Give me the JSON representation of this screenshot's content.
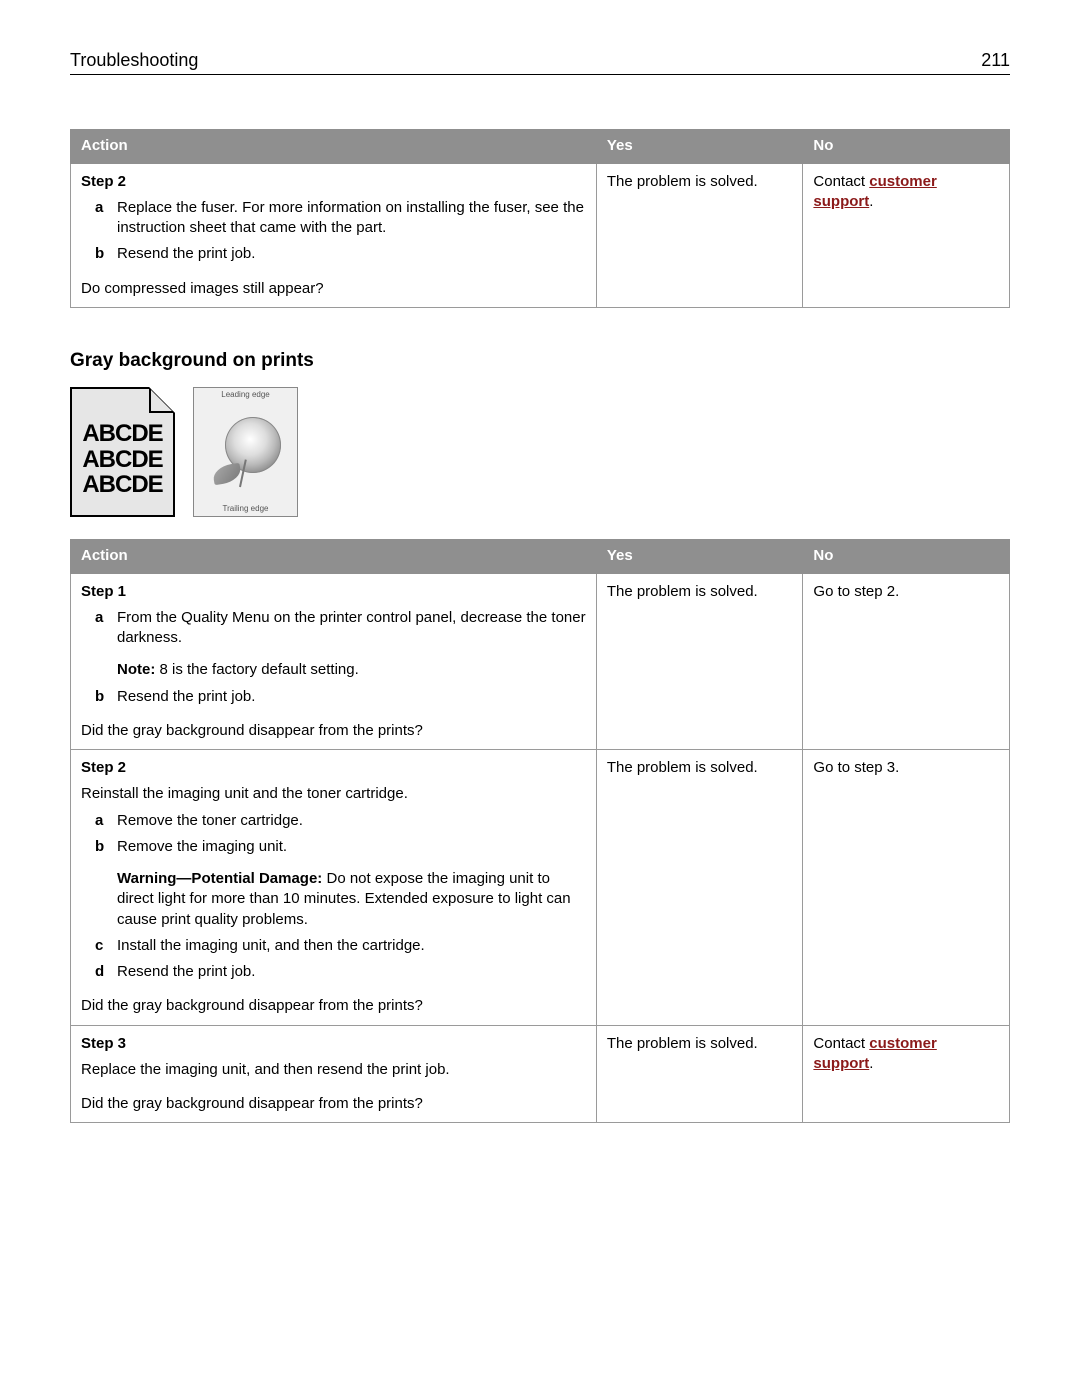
{
  "header": {
    "section": "Troubleshooting",
    "page_number": "211"
  },
  "link_text": "customer support",
  "table1": {
    "cols": {
      "action": "Action",
      "yes": "Yes",
      "no": "No"
    },
    "row": {
      "step_title": "Step 2",
      "items": {
        "a": "Replace the fuser. For more information on installing the fuser, see the instruction sheet that came with the part.",
        "b": "Resend the print job."
      },
      "question": "Do compressed images still appear?",
      "yes": "The problem is solved.",
      "no_prefix": "Contact ",
      "no_suffix": "."
    }
  },
  "subheading": "Gray background on prints",
  "thumb_text_line": "ABCDE",
  "thumb2_top": "Leading edge",
  "thumb2_bottom": "Trailing edge",
  "table2": {
    "cols": {
      "action": "Action",
      "yes": "Yes",
      "no": "No"
    },
    "rows": [
      {
        "step_title": "Step 1",
        "a": "From the Quality Menu on the printer control panel, decrease the toner darkness.",
        "note_label": "Note:",
        "note_body": " 8 is the factory default setting.",
        "b": "Resend the print job.",
        "question": "Did the gray background disappear from the prints?",
        "yes": "The problem is solved.",
        "no": "Go to step 2."
      },
      {
        "step_title": "Step 2",
        "intro": "Reinstall the imaging unit and the toner cartridge.",
        "a": "Remove the toner cartridge.",
        "b": "Remove the imaging unit.",
        "b_warn_label": "Warning—Potential Damage:",
        "b_warn_body": " Do not expose the imaging unit to direct light for more than 10 minutes. Extended exposure to light can cause print quality problems.",
        "c": "Install the imaging unit, and then the cartridge.",
        "d": "Resend the print job.",
        "question": "Did the gray background disappear from the prints?",
        "yes": "The problem is solved.",
        "no": "Go to step 3."
      },
      {
        "step_title": "Step 3",
        "intro": "Replace the imaging unit, and then resend the print job.",
        "question": "Did the gray background disappear from the prints?",
        "yes": "The problem is solved.",
        "no_prefix": "Contact ",
        "no_suffix": "."
      }
    ]
  }
}
